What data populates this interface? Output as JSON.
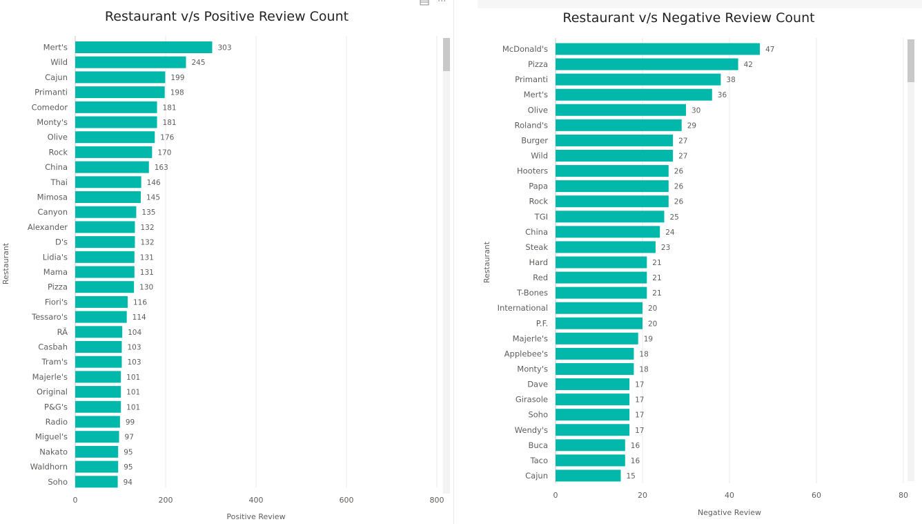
{
  "colors": {
    "bar": "#01B8AA",
    "grid": "#e8e8e8",
    "axis_text": "#605E5C",
    "title": "#252423"
  },
  "header": {
    "focus_icon": "focus-mode-icon",
    "more_icon": "more-options-icon",
    "more_glyph": "···"
  },
  "chart_data": [
    {
      "type": "bar",
      "orientation": "horizontal",
      "title": "Restaurant v/s Positive Review Count",
      "xlabel": "Positive Review",
      "ylabel": "Restaurant",
      "xlim": [
        0,
        800
      ],
      "xticks": [
        0,
        200,
        400,
        600,
        800
      ],
      "grid": true,
      "categories": [
        "Mert's",
        "Wild",
        "Cajun",
        "Primanti",
        "Comedor",
        "Monty's",
        "Olive",
        "Rock",
        "China",
        "Thai",
        "Mimosa",
        "Canyon",
        "Alexander",
        "D's",
        "Lidia's",
        "Mama",
        "Pizza",
        "Fiori's",
        "Tessaro's",
        "RÃ",
        "Casbah",
        "Tram's",
        "Majerle's",
        "Original",
        "P&G's",
        "Radio",
        "Miguel's",
        "Nakato",
        "Waldhorn",
        "Soho"
      ],
      "values": [
        303,
        245,
        199,
        198,
        181,
        181,
        176,
        170,
        163,
        146,
        145,
        135,
        132,
        132,
        131,
        131,
        130,
        116,
        114,
        104,
        103,
        103,
        101,
        101,
        101,
        99,
        97,
        95,
        95,
        94
      ],
      "scrollbar": {
        "visible": true,
        "position": 0
      }
    },
    {
      "type": "bar",
      "orientation": "horizontal",
      "title": "Restaurant v/s Negative Review Count",
      "xlabel": "Negative Review",
      "ylabel": "Restaurant",
      "xlim": [
        0,
        80
      ],
      "xticks": [
        0,
        20,
        40,
        60,
        80
      ],
      "grid": true,
      "categories": [
        "McDonald's",
        "Pizza",
        "Primanti",
        "Mert's",
        "Olive",
        "Roland's",
        "Burger",
        "Wild",
        "Hooters",
        "Papa",
        "Rock",
        "TGI",
        "China",
        "Steak",
        "Hard",
        "Red",
        "T-Bones",
        "International",
        "P.F.",
        "Majerle's",
        "Applebee's",
        "Monty's",
        "Dave",
        "Girasole",
        "Soho",
        "Wendy's",
        "Buca",
        "Taco",
        "Cajun"
      ],
      "values": [
        47,
        42,
        38,
        36,
        30,
        29,
        27,
        27,
        26,
        26,
        26,
        25,
        24,
        23,
        21,
        21,
        21,
        20,
        20,
        19,
        18,
        18,
        17,
        17,
        17,
        17,
        16,
        16,
        15
      ],
      "scrollbar": {
        "visible": true,
        "position": 0
      }
    }
  ]
}
